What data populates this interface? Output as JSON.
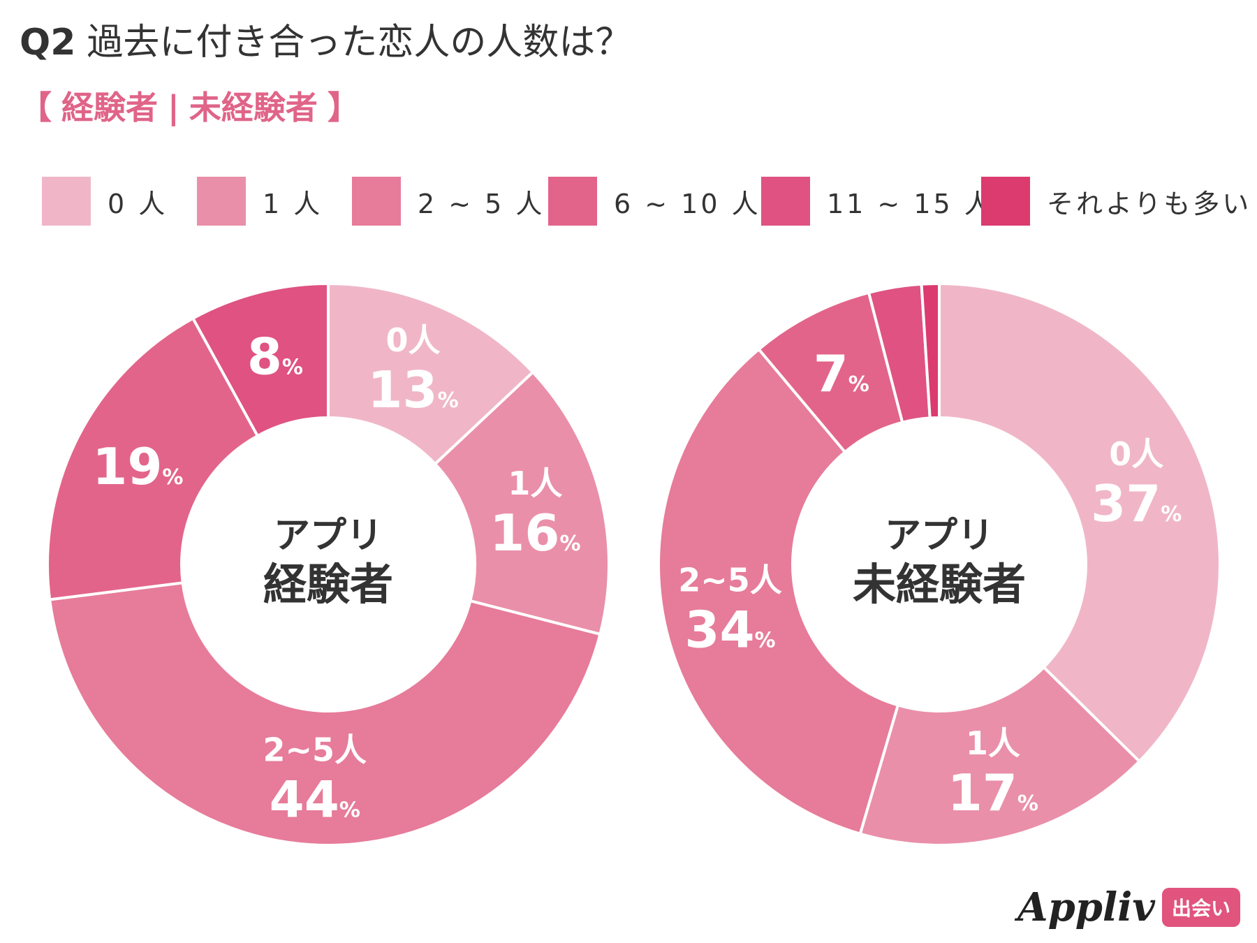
{
  "header": {
    "q_number": "Q2",
    "question": "過去に付き合った恋人の人数は？",
    "bracket_open": "【",
    "group_1": "経験者",
    "divider": "|",
    "group_2": "未経験者",
    "bracket_close": "】"
  },
  "legend": [
    {
      "label": "0 人",
      "color": "#f0b6c8"
    },
    {
      "label": "1 人",
      "color": "#ea8fa9"
    },
    {
      "label": "2 ~ 5 人",
      "color": "#e77b9a"
    },
    {
      "label": "6 ~ 10 人",
      "color": "#e3648a"
    },
    {
      "label": "11 ~ 15 人",
      "color": "#df5282"
    },
    {
      "label": "それよりも多い",
      "color": "#dc3b6f"
    }
  ],
  "chart_data": [
    {
      "type": "pie",
      "donut": true,
      "center_line1": "アプリ",
      "center_line2": "経験者",
      "categories": [
        "0 人",
        "1 人",
        "2 ~ 5 人",
        "6 ~ 10 人",
        "11 ~ 15 人",
        "それよりも多い"
      ],
      "values": [
        13,
        16,
        44,
        19,
        8,
        0
      ],
      "slice_labels": [
        {
          "name": "0人",
          "pct": "13"
        },
        {
          "name": "1人",
          "pct": "16"
        },
        {
          "name": "2~5人",
          "pct": "44"
        },
        {
          "name": "",
          "pct": "19"
        },
        {
          "name": "",
          "pct": "8"
        },
        {
          "name": "",
          "pct": ""
        }
      ]
    },
    {
      "type": "pie",
      "donut": true,
      "center_line1": "アプリ",
      "center_line2": "未経験者",
      "categories": [
        "0 人",
        "1 人",
        "2 ~ 5 人",
        "6 ~ 10 人",
        "11 ~ 15 人",
        "それよりも多い"
      ],
      "values": [
        37,
        17,
        34,
        7,
        3,
        1
      ],
      "slice_labels": [
        {
          "name": "0人",
          "pct": "37"
        },
        {
          "name": "1人",
          "pct": "17"
        },
        {
          "name": "2~5人",
          "pct": "34"
        },
        {
          "name": "",
          "pct": "7"
        },
        {
          "name": "",
          "pct": ""
        },
        {
          "name": "",
          "pct": ""
        }
      ]
    }
  ],
  "percent_sign": "%",
  "brand": {
    "name": "Appliv",
    "badge": "出会い"
  }
}
